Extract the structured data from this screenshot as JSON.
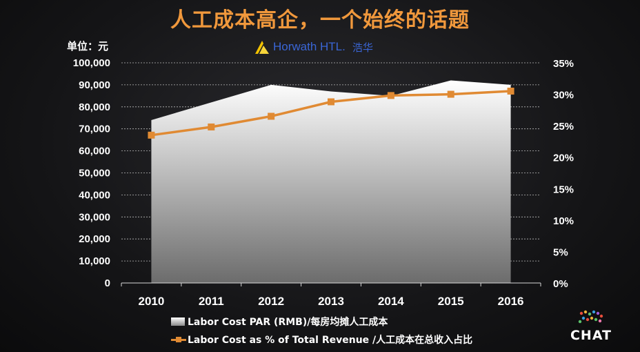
{
  "title": "人工成本高企，一个始终的话题",
  "unit_label": "单位：元",
  "brand": {
    "name": "Horwath HTL.",
    "name_cn": "浩华"
  },
  "chat_logo": "CHAT",
  "colors": {
    "title": "#f0983c",
    "line": "#e08a33",
    "brand": "#3a66d6"
  },
  "chart_data": {
    "type": "area+line",
    "categories": [
      "2010",
      "2011",
      "2012",
      "2013",
      "2014",
      "2015",
      "2016"
    ],
    "series": [
      {
        "name": "Labor Cost PAR (RMB)/每房均摊人工成本",
        "kind": "area",
        "axis": "left",
        "values": [
          74000,
          82000,
          90000,
          87000,
          85000,
          92000,
          90000
        ]
      },
      {
        "name": "Labor Cost  as % of Total Revenue /人工成本在总收入占比",
        "kind": "line",
        "axis": "right",
        "values": [
          23.5,
          24.8,
          26.5,
          28.8,
          29.8,
          30.0,
          30.5
        ]
      }
    ],
    "y_left": {
      "min": 0,
      "max": 100000,
      "ticks": [
        "0",
        "10,000",
        "20,000",
        "30,000",
        "40,000",
        "50,000",
        "60,000",
        "70,000",
        "80,000",
        "90,000",
        "100,000"
      ]
    },
    "y_right": {
      "min": 0,
      "max": 35,
      "ticks": [
        "0%",
        "5%",
        "10%",
        "15%",
        "20%",
        "25%",
        "30%",
        "35%"
      ]
    },
    "grid": true,
    "legend_position": "bottom"
  }
}
